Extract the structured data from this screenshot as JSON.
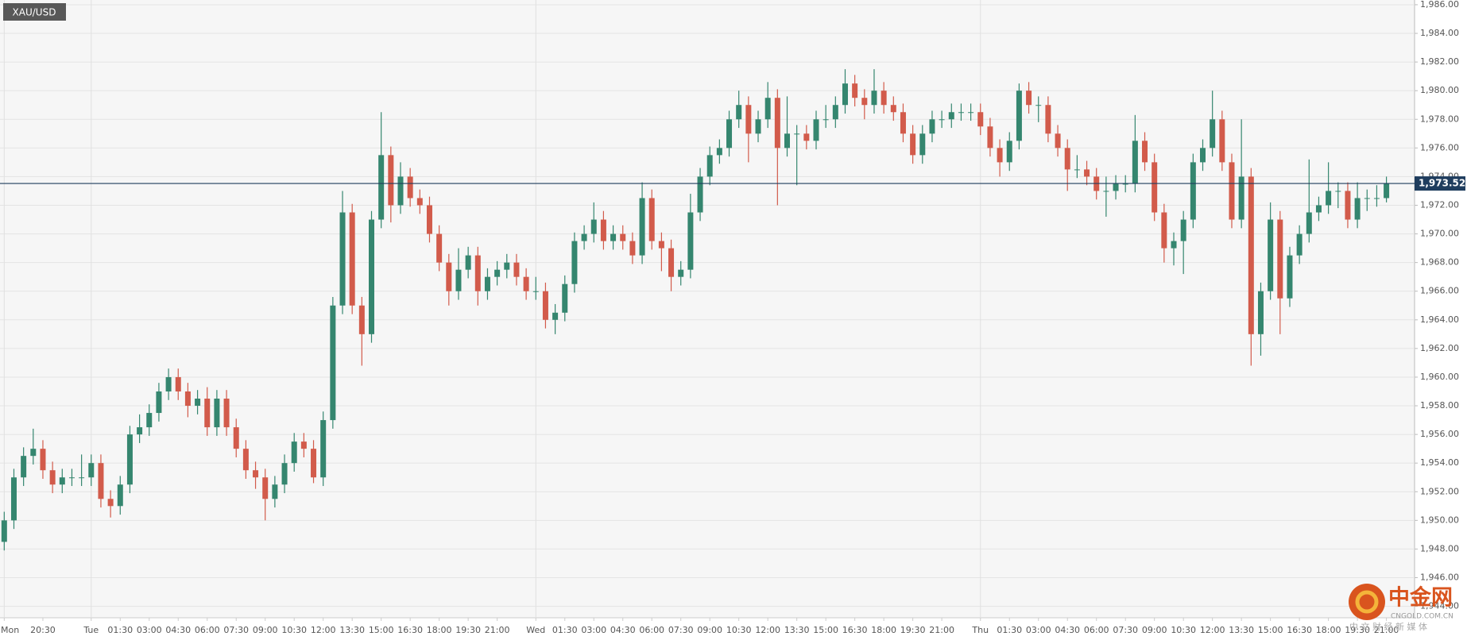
{
  "chart_data": {
    "type": "candlestick",
    "symbol": "XAU/USD",
    "open": [
      1948.5,
      1950,
      1953,
      1954.5,
      1955,
      1953.5,
      1952.5,
      1953,
      1953,
      1953,
      1954,
      1951.5,
      1951,
      1952.5,
      1956,
      1956.5,
      1957.5,
      1959,
      1960,
      1959,
      1958,
      1958.5,
      1956.5,
      1958.5,
      1956.5,
      1955,
      1953.5,
      1953,
      1951.5,
      1952.5,
      1954,
      1955.5,
      1955,
      1953,
      1957,
      1965,
      1971.5,
      1965,
      1963,
      1971,
      1975.5,
      1972,
      1974,
      1972.5,
      1972,
      1970,
      1968,
      1966,
      1967.5,
      1968.5,
      1966,
      1967,
      1967.5,
      1968,
      1967,
      1966,
      1966,
      1964,
      1964.5,
      1966.5,
      1969.5,
      1970,
      1971,
      1969.5,
      1970,
      1969.5,
      1968.5,
      1972.5,
      1969.5,
      1969,
      1967,
      1967.5,
      1971.5,
      1974,
      1975.5,
      1976,
      1978,
      1979,
      1977,
      1978,
      1979.5,
      1976,
      1977,
      1977,
      1976.5,
      1978,
      1978,
      1979,
      1980.5,
      1979.5,
      1979,
      1980,
      1979,
      1978.5,
      1977,
      1975.5,
      1977,
      1978,
      1978,
      1978.5,
      1978.5,
      1978.5,
      1977.5,
      1976,
      1975,
      1976.5,
      1980,
      1979,
      1979,
      1977,
      1976,
      1974.5,
      1974.5,
      1974,
      1973,
      1973,
      1973.5,
      1973.5,
      1976.5,
      1975,
      1971.5,
      1969,
      1969.5,
      1971,
      1975,
      1976,
      1978,
      1975,
      1971,
      1974,
      1963,
      1966,
      1971,
      1965.5,
      1968.5,
      1970,
      1971.5,
      1972,
      1973,
      1973,
      1971,
      1972.5,
      1972.5,
      1972.5
    ],
    "high": [
      1950.6,
      1953.6,
      1955.1,
      1956.4,
      1955.6,
      1954.1,
      1953.6,
      1953.6,
      1954.6,
      1954.6,
      1954.6,
      1952.1,
      1953.1,
      1956.6,
      1957.4,
      1958.1,
      1959.6,
      1960.6,
      1960.6,
      1959.6,
      1959.1,
      1959.3,
      1959.1,
      1959.1,
      1957.1,
      1955.6,
      1954.1,
      1953.6,
      1953.1,
      1954.6,
      1956.1,
      1956.1,
      1955.6,
      1957.6,
      1965.6,
      1973.0,
      1972.1,
      1965.6,
      1971.6,
      1978.5,
      1976.1,
      1975.0,
      1974.6,
      1973.1,
      1972.6,
      1970.6,
      1968.6,
      1969.0,
      1969.1,
      1969.1,
      1967.6,
      1968.1,
      1968.6,
      1968.6,
      1967.6,
      1967.0,
      1966.6,
      1965.1,
      1967.1,
      1970.1,
      1970.6,
      1972.2,
      1971.6,
      1970.6,
      1970.6,
      1970.1,
      1973.6,
      1973.1,
      1970.1,
      1969.6,
      1968.1,
      1972.8,
      1974.6,
      1976.1,
      1976.6,
      1978.6,
      1980.0,
      1979.6,
      1978.6,
      1980.6,
      1980.1,
      1979.6,
      1977.6,
      1977.6,
      1978.6,
      1979.0,
      1979.6,
      1981.5,
      1981.1,
      1980.1,
      1981.5,
      1980.6,
      1979.6,
      1979.1,
      1977.6,
      1977.6,
      1978.6,
      1978.6,
      1979.1,
      1979.1,
      1979.1,
      1979.1,
      1978.1,
      1976.6,
      1977.1,
      1980.5,
      1980.6,
      1979.6,
      1979.6,
      1977.6,
      1976.6,
      1975.5,
      1975.1,
      1974.6,
      1974.0,
      1974.1,
      1974.1,
      1978.3,
      1977.1,
      1975.6,
      1972.1,
      1970.1,
      1971.6,
      1975.6,
      1976.6,
      1980.0,
      1978.6,
      1975.6,
      1978.0,
      1974.6,
      1966.6,
      1972.2,
      1971.6,
      1969.1,
      1970.6,
      1975.2,
      1972.6,
      1975.0,
      1973.6,
      1973.6,
      1973.6,
      1973.1,
      1973.4,
      1974.0
    ],
    "low": [
      1947.9,
      1949.4,
      1952.4,
      1953.9,
      1952.9,
      1951.9,
      1951.9,
      1952.4,
      1952.4,
      1952.4,
      1950.9,
      1950.2,
      1950.4,
      1951.9,
      1955.4,
      1955.9,
      1956.9,
      1958.4,
      1958.4,
      1957.2,
      1957.4,
      1955.9,
      1955.9,
      1955.9,
      1954.4,
      1952.9,
      1952.2,
      1950.0,
      1950.9,
      1951.9,
      1953.4,
      1954.4,
      1952.6,
      1952.4,
      1956.4,
      1964.4,
      1964.4,
      1960.8,
      1962.4,
      1970.4,
      1970.8,
      1971.4,
      1971.9,
      1971.4,
      1969.4,
      1967.4,
      1965.0,
      1965.4,
      1966.9,
      1965.0,
      1965.4,
      1966.4,
      1966.9,
      1966.4,
      1965.4,
      1965.4,
      1963.4,
      1963.0,
      1963.9,
      1965.9,
      1968.9,
      1969.4,
      1968.9,
      1968.9,
      1968.9,
      1967.9,
      1967.9,
      1968.9,
      1967.4,
      1966.0,
      1966.4,
      1966.9,
      1970.9,
      1973.4,
      1974.9,
      1975.4,
      1977.4,
      1975.0,
      1976.4,
      1977.4,
      1972.0,
      1975.4,
      1973.4,
      1975.9,
      1975.9,
      1977.4,
      1977.4,
      1978.4,
      1978.9,
      1978.0,
      1978.4,
      1978.4,
      1977.9,
      1976.4,
      1974.9,
      1974.9,
      1976.4,
      1977.4,
      1977.4,
      1977.9,
      1977.9,
      1976.9,
      1975.4,
      1974.0,
      1974.4,
      1975.9,
      1978.4,
      1977.8,
      1976.4,
      1975.4,
      1973.0,
      1973.9,
      1973.4,
      1972.4,
      1971.2,
      1972.4,
      1972.9,
      1972.9,
      1974.4,
      1970.9,
      1968.0,
      1967.8,
      1967.2,
      1970.4,
      1974.4,
      1975.4,
      1974.4,
      1970.4,
      1970.4,
      1960.8,
      1961.5,
      1965.4,
      1963.0,
      1964.9,
      1967.9,
      1969.4,
      1970.9,
      1971.4,
      1971.8,
      1970.4,
      1970.4,
      1971.6,
      1971.9,
      1972.2
    ],
    "close": [
      1950,
      1953,
      1954.5,
      1955,
      1953.5,
      1952.5,
      1953,
      1953,
      1953,
      1954,
      1951.5,
      1951,
      1952.5,
      1956,
      1956.5,
      1957.5,
      1959,
      1960,
      1959,
      1958,
      1958.5,
      1956.5,
      1958.5,
      1956.5,
      1955,
      1953.5,
      1953,
      1951.5,
      1952.5,
      1954,
      1955.5,
      1955,
      1953,
      1957,
      1965,
      1971.5,
      1965,
      1963,
      1971,
      1975.5,
      1972,
      1974,
      1972.5,
      1972,
      1970,
      1968,
      1966,
      1967.5,
      1968.5,
      1966,
      1967,
      1967.5,
      1968,
      1967,
      1966,
      1966,
      1964,
      1964.5,
      1966.5,
      1969.5,
      1970,
      1971,
      1969.5,
      1970,
      1969.5,
      1968.5,
      1972.5,
      1969.5,
      1969,
      1967,
      1967.5,
      1971.5,
      1974,
      1975.5,
      1976,
      1978,
      1979,
      1977,
      1978,
      1979.5,
      1976,
      1977,
      1977,
      1976.5,
      1978,
      1978,
      1979,
      1980.5,
      1979.5,
      1979,
      1980,
      1979,
      1978.5,
      1977,
      1975.5,
      1977,
      1978,
      1978,
      1978.5,
      1978.5,
      1978.5,
      1977.5,
      1976,
      1975,
      1976.5,
      1980,
      1979,
      1979,
      1977,
      1976,
      1974.5,
      1974.5,
      1974,
      1973,
      1973,
      1973.5,
      1973.5,
      1976.5,
      1975,
      1971.5,
      1969,
      1969.5,
      1971,
      1975,
      1976,
      1978,
      1975,
      1971,
      1974,
      1963,
      1966,
      1971,
      1965.5,
      1968.5,
      1970,
      1971.5,
      1972,
      1973,
      1973,
      1971,
      1972.5,
      1972.5,
      1972.5,
      1973.52
    ],
    "up_color": "#35866f",
    "down_color": "#d25b4b",
    "last_price_color": "#1f3d5e",
    "last_price_label": "1,973.52",
    "ylim": [
      1943.2,
      1986.33
    ],
    "yticks": [
      {
        "value": 1944,
        "label": "1,944.00"
      },
      {
        "value": 1946,
        "label": "1,946.00"
      },
      {
        "value": 1948,
        "label": "1,948.00"
      },
      {
        "value": 1950,
        "label": "1,950.00"
      },
      {
        "value": 1952,
        "label": "1,952.00"
      },
      {
        "value": 1954,
        "label": "1,954.00"
      },
      {
        "value": 1956,
        "label": "1,956.00"
      },
      {
        "value": 1958,
        "label": "1,958.00"
      },
      {
        "value": 1960,
        "label": "1,960.00"
      },
      {
        "value": 1962,
        "label": "1,962.00"
      },
      {
        "value": 1964,
        "label": "1,964.00"
      },
      {
        "value": 1966,
        "label": "1,966.00"
      },
      {
        "value": 1968,
        "label": "1,968.00"
      },
      {
        "value": 1970,
        "label": "1,970.00"
      },
      {
        "value": 1972,
        "label": "1,972.00"
      },
      {
        "value": 1974,
        "label": "1,974.00"
      },
      {
        "value": 1976,
        "label": "1,976.00"
      },
      {
        "value": 1978,
        "label": "1,978.00"
      },
      {
        "value": 1980,
        "label": "1,980.00"
      },
      {
        "value": 1982,
        "label": "1,982.00"
      },
      {
        "value": 1984,
        "label": "1,984.00"
      },
      {
        "value": 1986,
        "label": "1,986.00"
      }
    ],
    "xticks": [
      {
        "value": 0,
        "label": "Mon"
      },
      {
        "value": 4,
        "label": "20:30"
      },
      {
        "value": 9,
        "label": "Tue"
      },
      {
        "value": 12,
        "label": "01:30"
      },
      {
        "value": 15,
        "label": "03:00"
      },
      {
        "value": 18,
        "label": "04:30"
      },
      {
        "value": 21,
        "label": "06:00"
      },
      {
        "value": 24,
        "label": "07:30"
      },
      {
        "value": 27,
        "label": "09:00"
      },
      {
        "value": 30,
        "label": "10:30"
      },
      {
        "value": 33,
        "label": "12:00"
      },
      {
        "value": 36,
        "label": "13:30"
      },
      {
        "value": 39,
        "label": "15:00"
      },
      {
        "value": 42,
        "label": "16:30"
      },
      {
        "value": 45,
        "label": "18:00"
      },
      {
        "value": 48,
        "label": "19:30"
      },
      {
        "value": 51,
        "label": "21:00"
      },
      {
        "value": 55,
        "label": "Wed"
      },
      {
        "value": 58,
        "label": "01:30"
      },
      {
        "value": 61,
        "label": "03:00"
      },
      {
        "value": 64,
        "label": "04:30"
      },
      {
        "value": 67,
        "label": "06:00"
      },
      {
        "value": 70,
        "label": "07:30"
      },
      {
        "value": 73,
        "label": "09:00"
      },
      {
        "value": 76,
        "label": "10:30"
      },
      {
        "value": 79,
        "label": "12:00"
      },
      {
        "value": 82,
        "label": "13:30"
      },
      {
        "value": 85,
        "label": "15:00"
      },
      {
        "value": 88,
        "label": "16:30"
      },
      {
        "value": 91,
        "label": "18:00"
      },
      {
        "value": 94,
        "label": "19:30"
      },
      {
        "value": 97,
        "label": "21:00"
      },
      {
        "value": 101,
        "label": "Thu"
      },
      {
        "value": 104,
        "label": "01:30"
      },
      {
        "value": 107,
        "label": "03:00"
      },
      {
        "value": 110,
        "label": "04:30"
      },
      {
        "value": 113,
        "label": "06:00"
      },
      {
        "value": 116,
        "label": "07:30"
      },
      {
        "value": 119,
        "label": "09:00"
      },
      {
        "value": 122,
        "label": "10:30"
      },
      {
        "value": 125,
        "label": "12:00"
      },
      {
        "value": 128,
        "label": "13:30"
      },
      {
        "value": 131,
        "label": "15:00"
      },
      {
        "value": 134,
        "label": "16:30"
      },
      {
        "value": 137,
        "label": "18:00"
      },
      {
        "value": 140,
        "label": "19:30"
      },
      {
        "value": 143,
        "label": "21:00"
      }
    ],
    "grid": true,
    "watermark": {
      "brand": "中金网",
      "site": "CNGOLD.COM.CN",
      "tagline": "中 文 财 经 新 媒 体"
    }
  }
}
